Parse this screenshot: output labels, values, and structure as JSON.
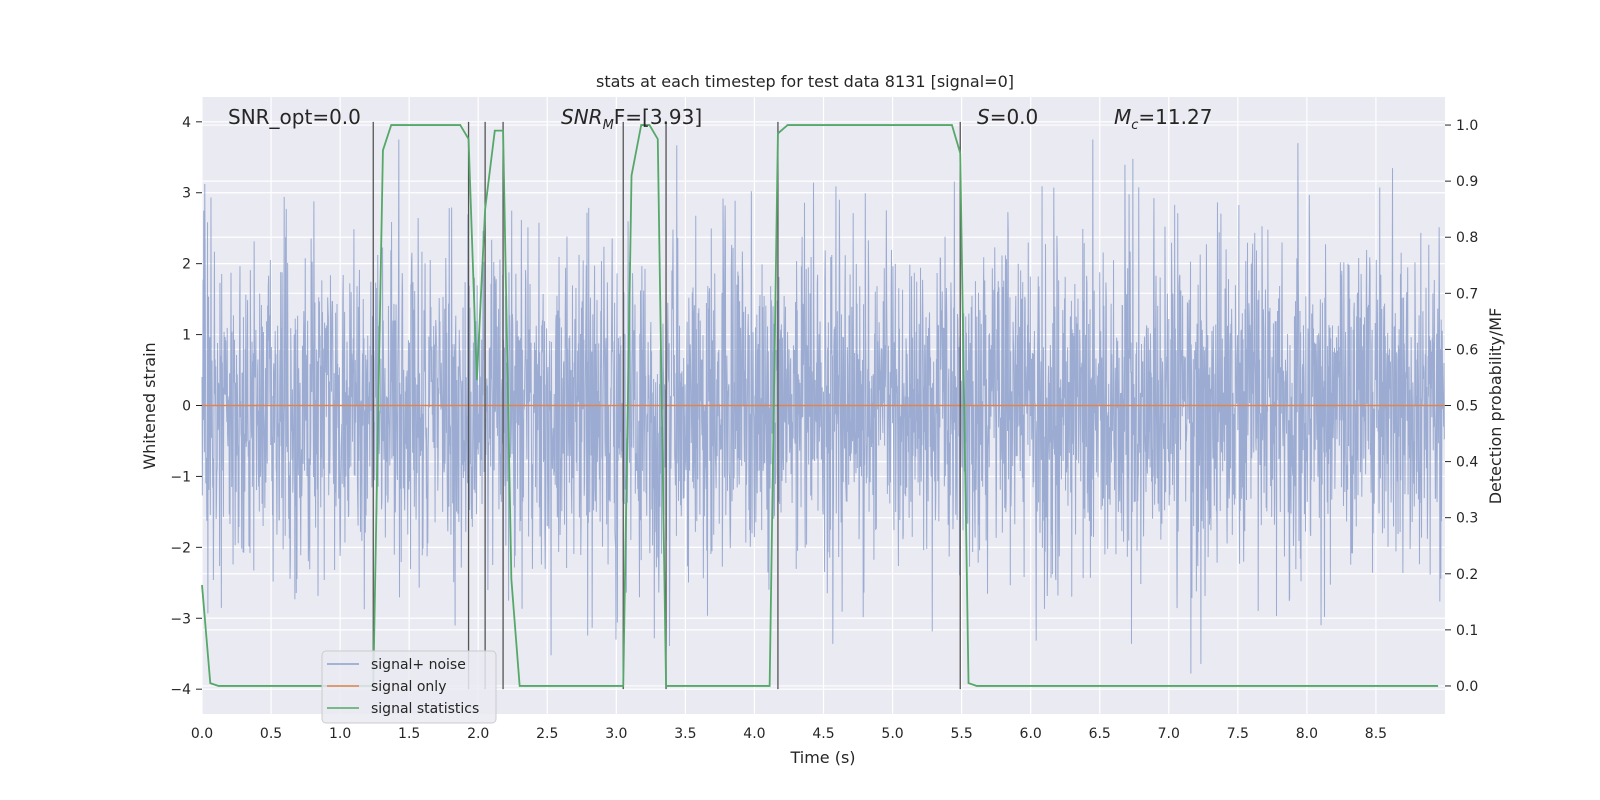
{
  "chart_data": {
    "type": "line",
    "title": "stats at each timestep for test data 8131 [signal=0]",
    "xlabel": "Time (s)",
    "ylabel": "Whitened strain",
    "y2label": "Detection probability/MF",
    "xlim": [
      0.0,
      9.0
    ],
    "ylim": [
      -4.35,
      4.35
    ],
    "y2lim": [
      -0.05,
      1.05
    ],
    "xticks": [
      "0.0",
      "0.5",
      "1.0",
      "1.5",
      "2.0",
      "2.5",
      "3.0",
      "3.5",
      "4.0",
      "4.5",
      "5.0",
      "5.5",
      "6.0",
      "6.5",
      "7.0",
      "7.5",
      "8.0",
      "8.5"
    ],
    "yticks": [
      "−4",
      "−3",
      "−2",
      "−1",
      "0",
      "1",
      "2",
      "3",
      "4"
    ],
    "y2ticks": [
      "0.0",
      "0.1",
      "0.2",
      "0.3",
      "0.4",
      "0.5",
      "0.6",
      "0.7",
      "0.8",
      "0.9",
      "1.0"
    ],
    "grid": true,
    "legend_position": "lower-left",
    "annotations": {
      "snr_opt": "SNR_opt=0.0",
      "snr_mf_main": "SNR",
      "snr_mf_sub": "M",
      "snr_mf_rest": "F=[3.93]",
      "s_italic": "S",
      "s_rest": "=0.0",
      "mc_main": "M",
      "mc_sub": "c",
      "mc_rest": "=11.27"
    },
    "series": [
      {
        "name": "signal+ noise",
        "color": "#8da0cb",
        "axis": "left",
        "sample_rate_hz": 400,
        "noise_amplitude_std": 1.0,
        "noise_amplitude_range": [
          -3.9,
          3.75
        ]
      },
      {
        "name": "signal only",
        "color": "#dd8452",
        "axis": "left",
        "x": [
          0.0,
          9.0
        ],
        "y": [
          0.0,
          0.0
        ]
      },
      {
        "name": "signal statistics",
        "color": "#55a868",
        "axis": "right",
        "x": [
          0.0,
          0.06,
          0.12,
          1.18,
          1.24,
          1.31,
          1.37,
          1.43,
          1.87,
          1.93,
          1.99,
          2.05,
          2.12,
          2.18,
          2.24,
          2.3,
          2.36,
          3.05,
          3.11,
          3.18,
          3.24,
          3.3,
          3.36,
          3.43,
          3.49,
          4.11,
          4.17,
          4.24,
          4.3,
          4.36,
          4.42,
          5.43,
          5.49,
          5.55,
          5.61,
          5.68,
          5.74,
          8.95
        ],
        "y": [
          0.18,
          0.005,
          0.0,
          0.0,
          0.0,
          0.955,
          1.0,
          1.0,
          1.0,
          0.975,
          0.545,
          0.85,
          0.99,
          0.99,
          0.19,
          0.0,
          0.0,
          0.0,
          0.91,
          1.0,
          1.0,
          0.975,
          0.0,
          0.0,
          0.0,
          0.0,
          0.985,
          1.0,
          1.0,
          1.0,
          1.0,
          1.0,
          0.95,
          0.005,
          0.0,
          0.0,
          0.0,
          0.0
        ]
      }
    ],
    "vlines": [
      {
        "x": 1.24,
        "ymin": -4.0,
        "ymax": 4.0
      },
      {
        "x": 1.93,
        "ymin": -4.0,
        "ymax": 4.0
      },
      {
        "x": 2.05,
        "ymin": -4.0,
        "ymax": 4.0
      },
      {
        "x": 2.18,
        "ymin": -4.0,
        "ymax": 4.0
      },
      {
        "x": 3.05,
        "ymin": -4.0,
        "ymax": 4.0
      },
      {
        "x": 3.36,
        "ymin": -4.0,
        "ymax": 4.0
      },
      {
        "x": 4.17,
        "ymin": -4.0,
        "ymax": 4.0
      },
      {
        "x": 5.49,
        "ymin": -4.0,
        "ymax": 4.0
      }
    ],
    "colors": {
      "plot_background": "#eaeaf2",
      "grid": "#ffffff",
      "vline": "#555555"
    }
  }
}
